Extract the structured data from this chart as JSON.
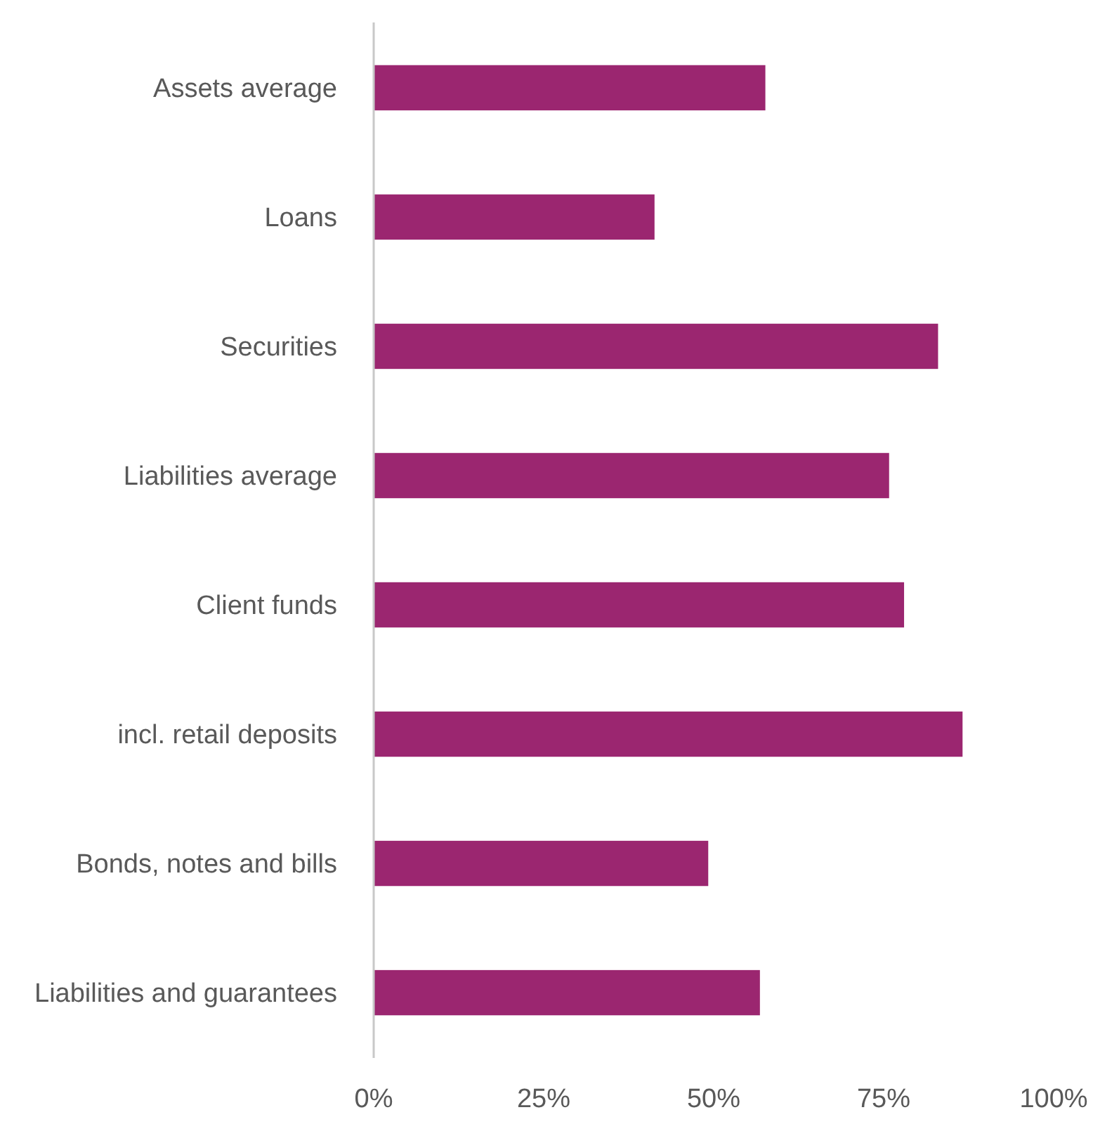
{
  "chart_data": {
    "type": "bar",
    "orientation": "horizontal",
    "categories": [
      "Assets average",
      "Loans",
      "Securities",
      "Liabilities average",
      "Client funds",
      "incl. retail deposits",
      "Bonds, notes and bills",
      "Liabilities and guarantees"
    ],
    "values": [
      57.6,
      41.3,
      83,
      75.8,
      78,
      86.6,
      49.2,
      56.8
    ],
    "color": "#9b2670",
    "xlim": [
      0,
      100
    ],
    "xticks": [
      {
        "value": 0,
        "label": "0%"
      },
      {
        "value": 25,
        "label": "25%"
      },
      {
        "value": 50,
        "label": "50%"
      },
      {
        "value": 75,
        "label": "75%"
      },
      {
        "value": 100,
        "label": "100%"
      }
    ],
    "grid": false
  }
}
